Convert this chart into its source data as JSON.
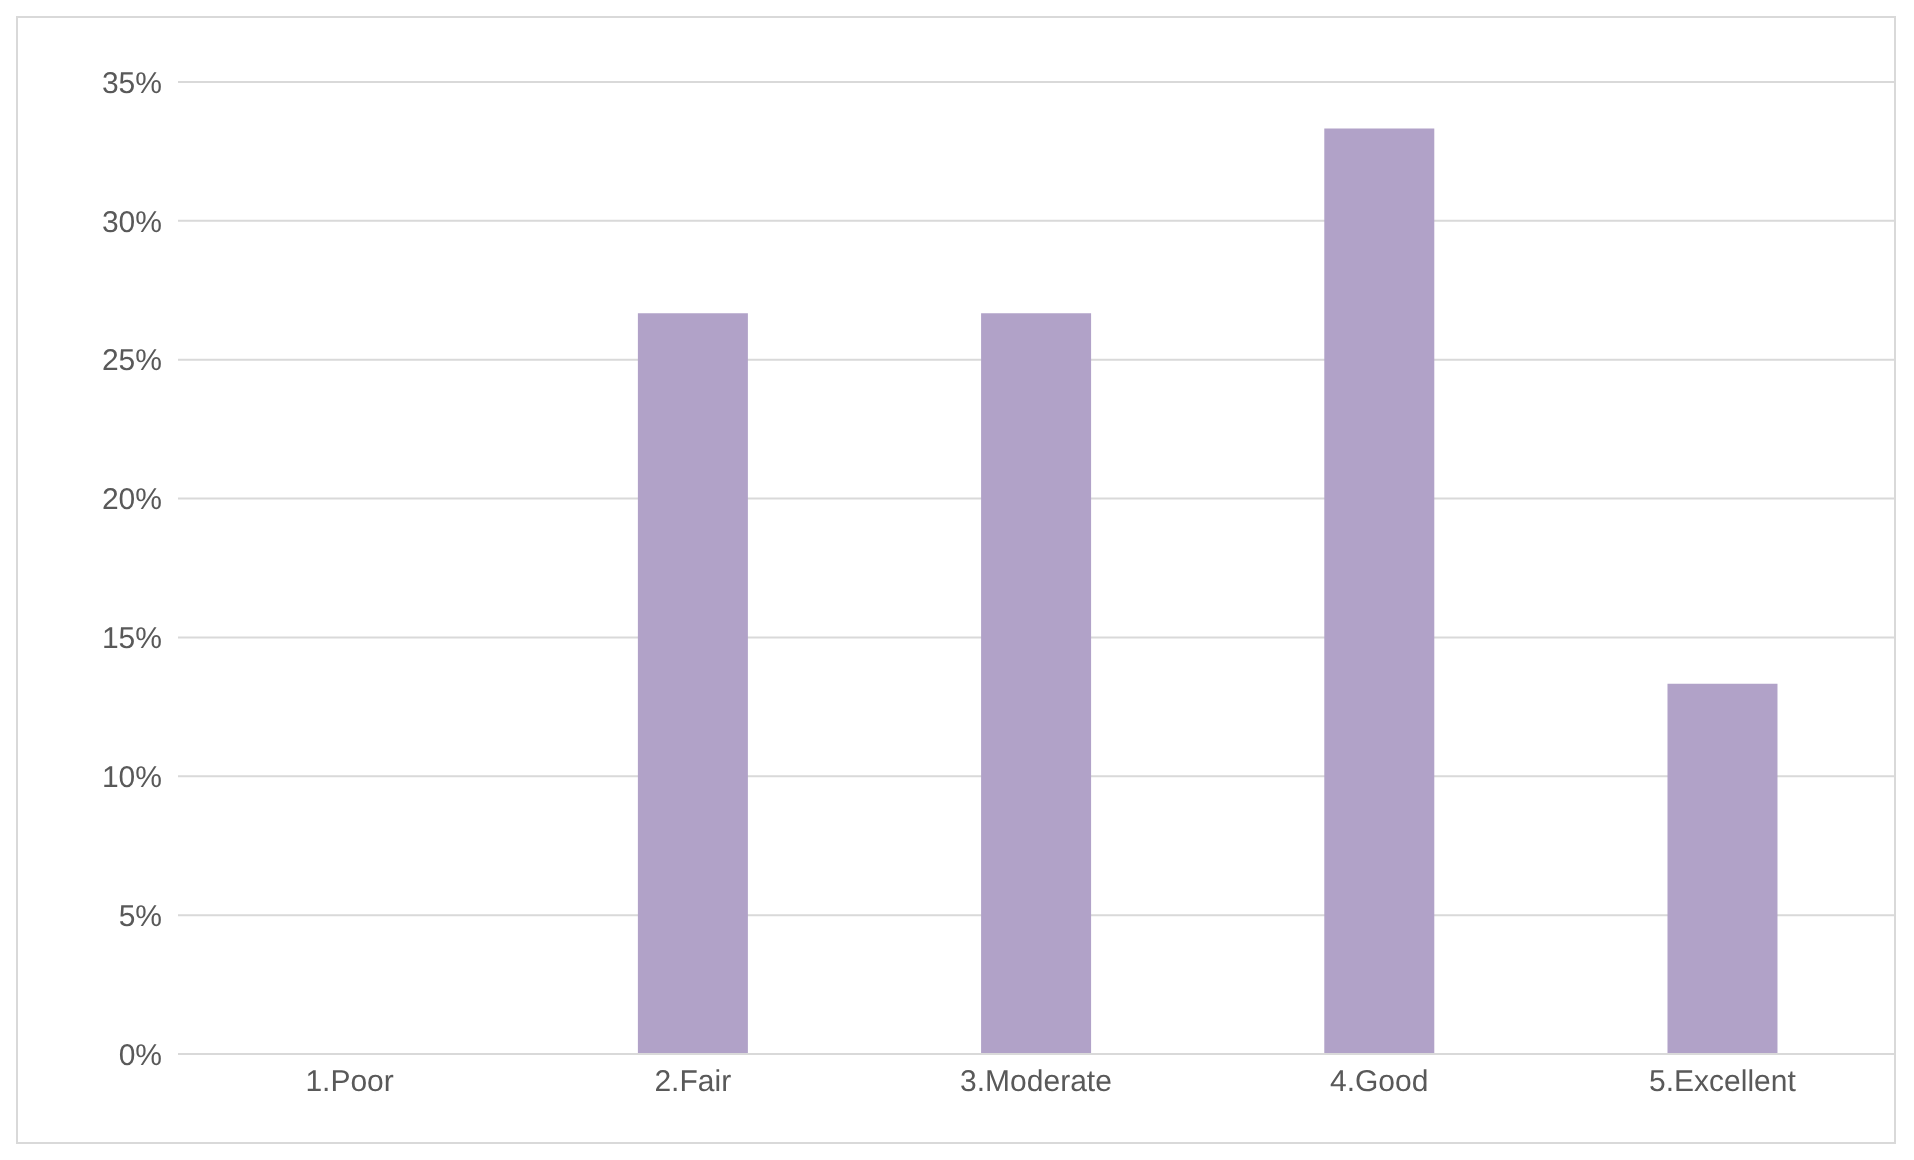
{
  "chart_data": {
    "type": "bar",
    "categories": [
      "1.Poor",
      "2.Fair",
      "3.Moderate",
      "4.Good",
      "5.Excellent"
    ],
    "values": [
      0,
      26.67,
      26.67,
      33.33,
      13.33
    ],
    "color": "#b1a2c8",
    "ylim": [
      0,
      35
    ],
    "yticks": [
      {
        "value": 0,
        "label": "0%"
      },
      {
        "value": 5,
        "label": "5%"
      },
      {
        "value": 10,
        "label": "10%"
      },
      {
        "value": 15,
        "label": "15%"
      },
      {
        "value": 20,
        "label": "20%"
      },
      {
        "value": 25,
        "label": "25%"
      },
      {
        "value": 30,
        "label": "30%"
      },
      {
        "value": 35,
        "label": "35%"
      }
    ],
    "grid": "y",
    "legend": false
  }
}
